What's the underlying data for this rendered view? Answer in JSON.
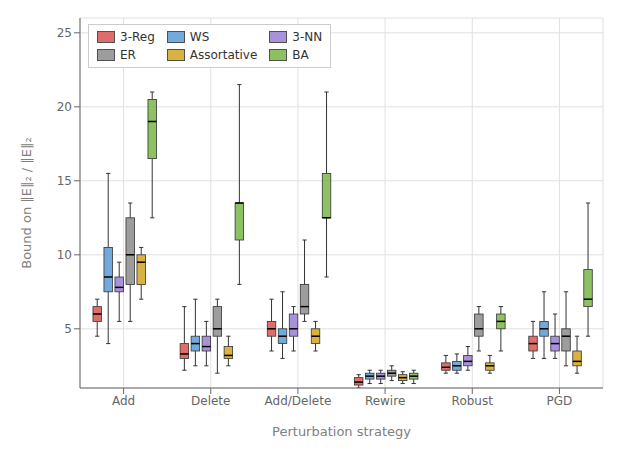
{
  "chart_data": {
    "type": "box",
    "x_label": "Perturbation strategy",
    "y_label": "Bound on ‖E‖₂ / ‖E‖₂",
    "categories": [
      "Add",
      "Delete",
      "Add/Delete",
      "Rewire",
      "Robust",
      "PGD"
    ],
    "series": [
      {
        "name": "3-Reg",
        "color": "#d9534f",
        "values": [
          {
            "whislo": 4.5,
            "q1": 5.5,
            "med": 6.0,
            "q3": 6.5,
            "whishi": 7.0
          },
          {
            "whislo": 2.2,
            "q1": 3.0,
            "med": 3.3,
            "q3": 4.0,
            "whishi": 6.5
          },
          {
            "whislo": 3.5,
            "q1": 4.5,
            "med": 5.0,
            "q3": 5.5,
            "whishi": 7.0
          },
          {
            "whislo": 1.0,
            "q1": 1.2,
            "med": 1.4,
            "q3": 1.7,
            "whishi": 1.9
          },
          {
            "whislo": 2.0,
            "q1": 2.2,
            "med": 2.4,
            "q3": 2.7,
            "whishi": 3.2
          },
          {
            "whislo": 3.0,
            "q1": 3.5,
            "med": 4.0,
            "q3": 4.5,
            "whishi": 5.5
          }
        ]
      },
      {
        "name": "WS",
        "color": "#5b9bd5",
        "values": [
          {
            "whislo": 4.0,
            "q1": 7.5,
            "med": 8.5,
            "q3": 10.5,
            "whishi": 15.5
          },
          {
            "whislo": 2.5,
            "q1": 3.5,
            "med": 4.0,
            "q3": 4.5,
            "whishi": 7.0
          },
          {
            "whislo": 3.0,
            "q1": 4.0,
            "med": 4.5,
            "q3": 5.0,
            "whishi": 7.5
          },
          {
            "whislo": 1.3,
            "q1": 1.6,
            "med": 1.8,
            "q3": 2.0,
            "whishi": 2.2
          },
          {
            "whislo": 2.0,
            "q1": 2.2,
            "med": 2.5,
            "q3": 2.8,
            "whishi": 3.3
          },
          {
            "whislo": 3.0,
            "q1": 4.5,
            "med": 5.0,
            "q3": 5.5,
            "whishi": 7.5
          }
        ]
      },
      {
        "name": "3-NN",
        "color": "#9b7fd4",
        "values": [
          {
            "whislo": 5.5,
            "q1": 7.5,
            "med": 7.8,
            "q3": 8.5,
            "whishi": 9.5
          },
          {
            "whislo": 2.5,
            "q1": 3.5,
            "med": 3.8,
            "q3": 4.5,
            "whishi": 5.5
          },
          {
            "whislo": 3.5,
            "q1": 4.5,
            "med": 5.0,
            "q3": 6.0,
            "whishi": 6.5
          },
          {
            "whislo": 1.3,
            "q1": 1.6,
            "med": 1.8,
            "q3": 2.0,
            "whishi": 2.2
          },
          {
            "whislo": 2.2,
            "q1": 2.5,
            "med": 2.8,
            "q3": 3.2,
            "whishi": 3.8
          },
          {
            "whislo": 3.0,
            "q1": 3.5,
            "med": 4.0,
            "q3": 4.5,
            "whishi": 6.0
          }
        ]
      },
      {
        "name": "ER",
        "color": "#8c8c8c",
        "values": [
          {
            "whislo": 5.5,
            "q1": 8.0,
            "med": 10.0,
            "q3": 12.5,
            "whishi": 13.5
          },
          {
            "whislo": 2.0,
            "q1": 4.5,
            "med": 5.0,
            "q3": 6.5,
            "whishi": 7.0
          },
          {
            "whislo": 5.5,
            "q1": 6.0,
            "med": 6.5,
            "q3": 8.0,
            "whishi": 11.0
          },
          {
            "whislo": 1.5,
            "q1": 1.8,
            "med": 2.0,
            "q3": 2.2,
            "whishi": 2.5
          },
          {
            "whislo": 3.5,
            "q1": 4.5,
            "med": 5.0,
            "q3": 6.0,
            "whishi": 6.5
          },
          {
            "whislo": 2.5,
            "q1": 3.5,
            "med": 4.5,
            "q3": 5.0,
            "whishi": 7.5
          }
        ]
      },
      {
        "name": "Assortative",
        "color": "#d4a520",
        "values": [
          {
            "whislo": 7.0,
            "q1": 8.0,
            "med": 9.5,
            "q3": 10.0,
            "whishi": 10.5
          },
          {
            "whislo": 2.5,
            "q1": 3.0,
            "med": 3.2,
            "q3": 3.8,
            "whishi": 4.5
          },
          {
            "whislo": 3.5,
            "q1": 4.0,
            "med": 4.5,
            "q3": 5.0,
            "whishi": 5.5
          },
          {
            "whislo": 1.3,
            "q1": 1.5,
            "med": 1.7,
            "q3": 1.9,
            "whishi": 2.1
          },
          {
            "whislo": 2.0,
            "q1": 2.2,
            "med": 2.5,
            "q3": 2.7,
            "whishi": 3.2
          },
          {
            "whislo": 2.0,
            "q1": 2.5,
            "med": 2.8,
            "q3": 3.5,
            "whishi": 4.5
          }
        ]
      },
      {
        "name": "BA",
        "color": "#7ab648",
        "values": [
          {
            "whislo": 12.5,
            "q1": 16.5,
            "med": 19.0,
            "q3": 20.5,
            "whishi": 21.0
          },
          {
            "whislo": 8.0,
            "q1": 11.0,
            "med": 13.5,
            "q3": 13.5,
            "whishi": 21.5
          },
          {
            "whislo": 8.5,
            "q1": 12.5,
            "med": 12.5,
            "q3": 15.5,
            "whishi": 21.0
          },
          {
            "whislo": 1.3,
            "q1": 1.6,
            "med": 1.8,
            "q3": 2.0,
            "whishi": 2.2
          },
          {
            "whislo": 3.5,
            "q1": 5.0,
            "med": 5.5,
            "q3": 6.0,
            "whishi": 6.5
          },
          {
            "whislo": 4.5,
            "q1": 6.5,
            "med": 7.0,
            "q3": 9.0,
            "whishi": 13.5
          }
        ]
      }
    ],
    "ylim": [
      1,
      26
    ],
    "yticks": [
      5,
      10,
      15,
      20,
      25
    ],
    "grid": true,
    "legend": "upper left"
  }
}
